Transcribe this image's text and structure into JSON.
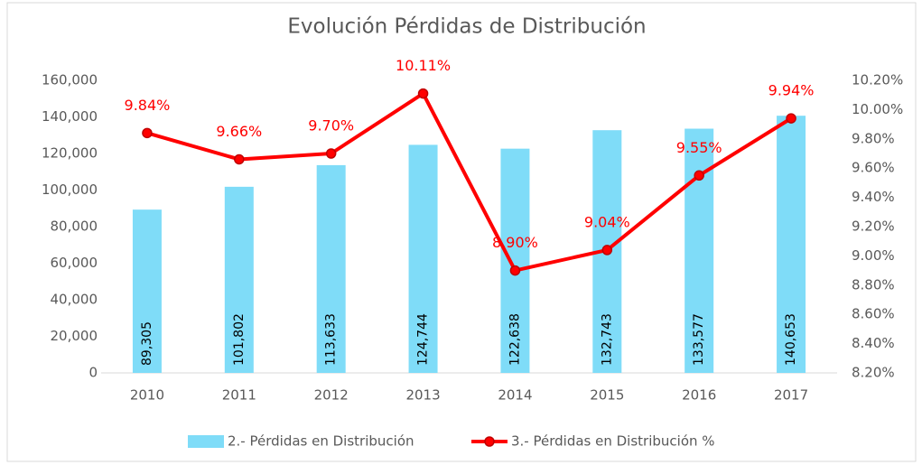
{
  "chart_data": {
    "type": "bar",
    "title": "Evolución Pérdidas de Distribución",
    "categories": [
      "2010",
      "2011",
      "2012",
      "2013",
      "2014",
      "2015",
      "2016",
      "2017"
    ],
    "series": [
      {
        "name": "2.- Pérdidas en Distribución",
        "type": "bar",
        "color": "#7fdcf8",
        "values": [
          89305,
          101802,
          113633,
          124744,
          122638,
          132743,
          133577,
          140653
        ],
        "value_labels": [
          "89,305",
          "101,802",
          "113,633",
          "124,744",
          "122,638",
          "132,743",
          "133,577",
          "140,653"
        ]
      },
      {
        "name": "3.- Pérdidas en Distribución %",
        "type": "line",
        "color": "#ff0000",
        "axis": "y2",
        "values": [
          9.84,
          9.66,
          9.7,
          10.11,
          8.9,
          9.04,
          9.55,
          9.94
        ],
        "value_labels": [
          "9.84%",
          "9.66%",
          "9.70%",
          "10.11%",
          "8.90%",
          "9.04%",
          "9.55%",
          "9.94%"
        ]
      }
    ],
    "ylim": [
      0,
      160000
    ],
    "yticks": [
      0,
      {
        "value": 20000,
        "label": "20,000"
      },
      {
        "value": 40000,
        "label": "40,000"
      },
      {
        "value": 60000,
        "label": "60,000"
      },
      {
        "value": 80000,
        "label": "80,000"
      },
      {
        "value": 100000,
        "label": "100,000"
      },
      {
        "value": 120000,
        "label": "120,000"
      },
      {
        "value": 140000,
        "label": "140,000"
      },
      {
        "value": 160000,
        "label": "160,000"
      }
    ],
    "y2lim": [
      8.2,
      10.2
    ],
    "y2ticks": [
      {
        "value": 8.2,
        "label": "8.20%"
      },
      {
        "value": 8.4,
        "label": "8.40%"
      },
      {
        "value": 8.6,
        "label": "8.60%"
      },
      {
        "value": 8.8,
        "label": "8.80%"
      },
      {
        "value": 9.0,
        "label": "9.00%"
      },
      {
        "value": 9.2,
        "label": "9.20%"
      },
      {
        "value": 9.4,
        "label": "9.40%"
      },
      {
        "value": 9.6,
        "label": "9.60%"
      },
      {
        "value": 9.8,
        "label": "9.80%"
      },
      {
        "value": 10.0,
        "label": "10.00%"
      },
      {
        "value": 10.2,
        "label": "10.20%"
      }
    ],
    "grid": false,
    "legend": "bottom"
  }
}
